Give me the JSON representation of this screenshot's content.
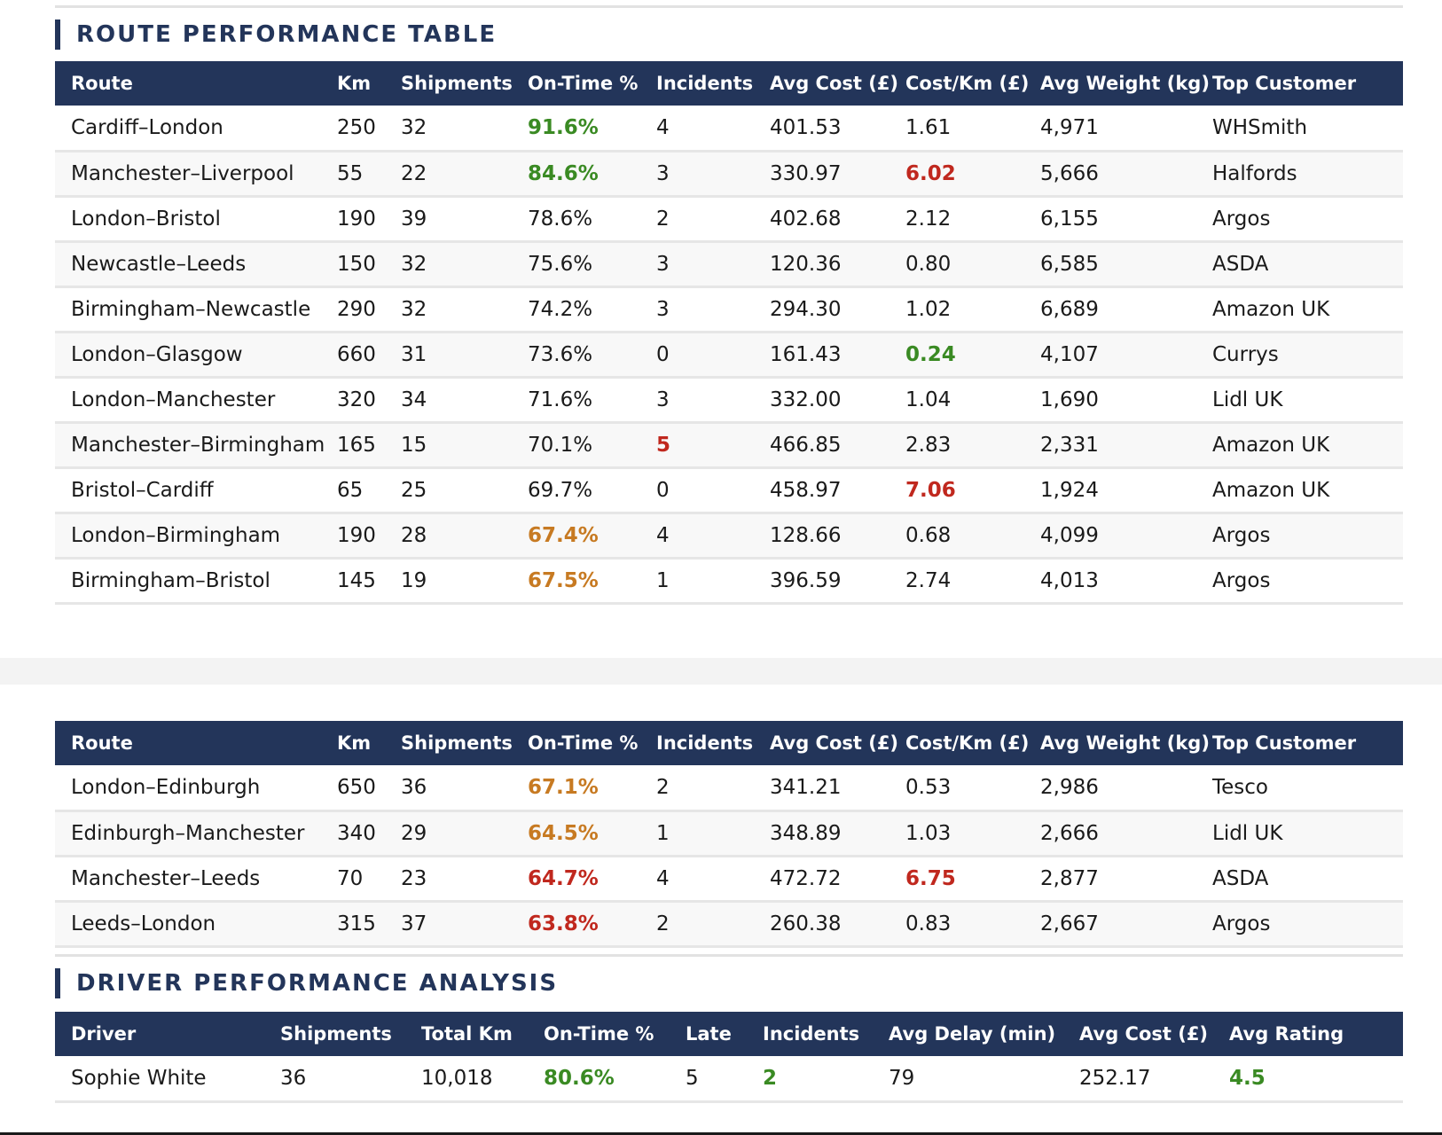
{
  "route_section": {
    "title": "ROUTE PERFORMANCE TABLE"
  },
  "route_headers": [
    "Route",
    "Km",
    "Shipments",
    "On-Time %",
    "Incidents",
    "Avg Cost (£)",
    "Cost/Km (£)",
    "Avg Weight (kg)",
    "Top Customer"
  ],
  "route_rows_a": [
    {
      "route": "Cardiff–London",
      "km": "250",
      "shipments": "32",
      "ontime": "91.6%",
      "ontime_status": "good",
      "incidents": "4",
      "incidents_status": "",
      "avg_cost": "401.53",
      "cost_km": "1.61",
      "cost_km_status": "",
      "avg_weight": "4,971",
      "top_customer": "WHSmith"
    },
    {
      "route": "Manchester–Liverpool",
      "km": "55",
      "shipments": "22",
      "ontime": "84.6%",
      "ontime_status": "good",
      "incidents": "3",
      "incidents_status": "",
      "avg_cost": "330.97",
      "cost_km": "6.02",
      "cost_km_status": "bad",
      "avg_weight": "5,666",
      "top_customer": "Halfords"
    },
    {
      "route": "London–Bristol",
      "km": "190",
      "shipments": "39",
      "ontime": "78.6%",
      "ontime_status": "",
      "incidents": "2",
      "incidents_status": "",
      "avg_cost": "402.68",
      "cost_km": "2.12",
      "cost_km_status": "",
      "avg_weight": "6,155",
      "top_customer": "Argos"
    },
    {
      "route": "Newcastle–Leeds",
      "km": "150",
      "shipments": "32",
      "ontime": "75.6%",
      "ontime_status": "",
      "incidents": "3",
      "incidents_status": "",
      "avg_cost": "120.36",
      "cost_km": "0.80",
      "cost_km_status": "",
      "avg_weight": "6,585",
      "top_customer": "ASDA"
    },
    {
      "route": "Birmingham–Newcastle",
      "km": "290",
      "shipments": "32",
      "ontime": "74.2%",
      "ontime_status": "",
      "incidents": "3",
      "incidents_status": "",
      "avg_cost": "294.30",
      "cost_km": "1.02",
      "cost_km_status": "",
      "avg_weight": "6,689",
      "top_customer": "Amazon UK"
    },
    {
      "route": "London–Glasgow",
      "km": "660",
      "shipments": "31",
      "ontime": "73.6%",
      "ontime_status": "",
      "incidents": "0",
      "incidents_status": "",
      "avg_cost": "161.43",
      "cost_km": "0.24",
      "cost_km_status": "good",
      "avg_weight": "4,107",
      "top_customer": "Currys"
    },
    {
      "route": "London–Manchester",
      "km": "320",
      "shipments": "34",
      "ontime": "71.6%",
      "ontime_status": "",
      "incidents": "3",
      "incidents_status": "",
      "avg_cost": "332.00",
      "cost_km": "1.04",
      "cost_km_status": "",
      "avg_weight": "1,690",
      "top_customer": "Lidl UK"
    },
    {
      "route": "Manchester–Birmingham",
      "km": "165",
      "shipments": "15",
      "ontime": "70.1%",
      "ontime_status": "",
      "incidents": "5",
      "incidents_status": "bad",
      "avg_cost": "466.85",
      "cost_km": "2.83",
      "cost_km_status": "",
      "avg_weight": "2,331",
      "top_customer": "Amazon UK"
    },
    {
      "route": "Bristol–Cardiff",
      "km": "65",
      "shipments": "25",
      "ontime": "69.7%",
      "ontime_status": "",
      "incidents": "0",
      "incidents_status": "",
      "avg_cost": "458.97",
      "cost_km": "7.06",
      "cost_km_status": "bad",
      "avg_weight": "1,924",
      "top_customer": "Amazon UK"
    },
    {
      "route": "London–Birmingham",
      "km": "190",
      "shipments": "28",
      "ontime": "67.4%",
      "ontime_status": "warn",
      "incidents": "4",
      "incidents_status": "",
      "avg_cost": "128.66",
      "cost_km": "0.68",
      "cost_km_status": "",
      "avg_weight": "4,099",
      "top_customer": "Argos"
    },
    {
      "route": "Birmingham–Bristol",
      "km": "145",
      "shipments": "19",
      "ontime": "67.5%",
      "ontime_status": "warn",
      "incidents": "1",
      "incidents_status": "",
      "avg_cost": "396.59",
      "cost_km": "2.74",
      "cost_km_status": "",
      "avg_weight": "4,013",
      "top_customer": "Argos"
    }
  ],
  "route_rows_b": [
    {
      "route": "London–Edinburgh",
      "km": "650",
      "shipments": "36",
      "ontime": "67.1%",
      "ontime_status": "warn",
      "incidents": "2",
      "incidents_status": "",
      "avg_cost": "341.21",
      "cost_km": "0.53",
      "cost_km_status": "",
      "avg_weight": "2,986",
      "top_customer": "Tesco"
    },
    {
      "route": "Edinburgh–Manchester",
      "km": "340",
      "shipments": "29",
      "ontime": "64.5%",
      "ontime_status": "warn",
      "incidents": "1",
      "incidents_status": "",
      "avg_cost": "348.89",
      "cost_km": "1.03",
      "cost_km_status": "",
      "avg_weight": "2,666",
      "top_customer": "Lidl UK"
    },
    {
      "route": "Manchester–Leeds",
      "km": "70",
      "shipments": "23",
      "ontime": "64.7%",
      "ontime_status": "bad",
      "incidents": "4",
      "incidents_status": "",
      "avg_cost": "472.72",
      "cost_km": "6.75",
      "cost_km_status": "bad",
      "avg_weight": "2,877",
      "top_customer": "ASDA"
    },
    {
      "route": "Leeds–London",
      "km": "315",
      "shipments": "37",
      "ontime": "63.8%",
      "ontime_status": "bad",
      "incidents": "2",
      "incidents_status": "",
      "avg_cost": "260.38",
      "cost_km": "0.83",
      "cost_km_status": "",
      "avg_weight": "2,667",
      "top_customer": "Argos"
    }
  ],
  "driver_section": {
    "title": "DRIVER PERFORMANCE ANALYSIS"
  },
  "driver_headers": [
    "Driver",
    "Shipments",
    "Total Km",
    "On-Time %",
    "Late",
    "Incidents",
    "Avg Delay (min)",
    "Avg Cost (£)",
    "Avg Rating"
  ],
  "driver_rows": [
    {
      "driver": "Sophie White",
      "shipments": "36",
      "total_km": "10,018",
      "ontime": "80.6%",
      "ontime_status": "good",
      "late": "5",
      "incidents": "2",
      "incidents_status": "good",
      "avg_delay": "79",
      "avg_cost": "252.17",
      "avg_rating": "4.5",
      "avg_rating_status": "good"
    }
  ],
  "colors": {
    "header_bg": "#23355a",
    "good": "#3a8a23",
    "warn": "#c77a22",
    "bad": "#c0281e"
  }
}
